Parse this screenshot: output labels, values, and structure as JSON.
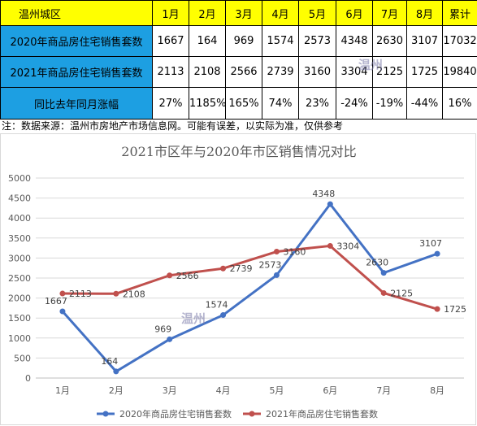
{
  "table": {
    "header": [
      "温州城区",
      "1月",
      "2月",
      "3月",
      "4月",
      "5月",
      "6月",
      "7月",
      "8月",
      "累计"
    ],
    "rows": [
      {
        "label": "2020年商品房住宅销售套数",
        "values": [
          "1667",
          "164",
          "969",
          "1574",
          "2573",
          "4348",
          "2630",
          "3107",
          "17032"
        ]
      },
      {
        "label": "2021年商品房住宅销售套数",
        "values": [
          "2113",
          "2108",
          "2566",
          "2739",
          "3160",
          "3304",
          "2125",
          "1725",
          "19840"
        ]
      },
      {
        "label": "同比去年同月涨幅",
        "values": [
          "27%",
          "1185%",
          "165%",
          "74%",
          "23%",
          "-24%",
          "-19%",
          "-44%",
          "16%"
        ]
      }
    ]
  },
  "note": "注：数据来源：温州市房地产市场信息网。可能有误差，以实际为准，仅供参考",
  "watermark_text": "温州",
  "chart_data": {
    "type": "line",
    "title": "2021市区年与2020年市区销售情况对比",
    "categories": [
      "1月",
      "2月",
      "3月",
      "4月",
      "5月",
      "6月",
      "7月",
      "8月"
    ],
    "ylim": [
      0,
      5000
    ],
    "yticks": [
      0,
      500,
      1000,
      1500,
      2000,
      2500,
      3000,
      3500,
      4000,
      4500,
      5000
    ],
    "grid": true,
    "legend_position": "bottom",
    "series": [
      {
        "name": "2020年商品房住宅销售套数",
        "color": "#4472c4",
        "values": [
          1667,
          164,
          969,
          1574,
          2573,
          4348,
          2630,
          3107
        ]
      },
      {
        "name": "2021年商品房住宅销售套数",
        "color": "#c0504d",
        "values": [
          2113,
          2108,
          2566,
          2739,
          3160,
          3304,
          2125,
          1725
        ]
      }
    ]
  }
}
